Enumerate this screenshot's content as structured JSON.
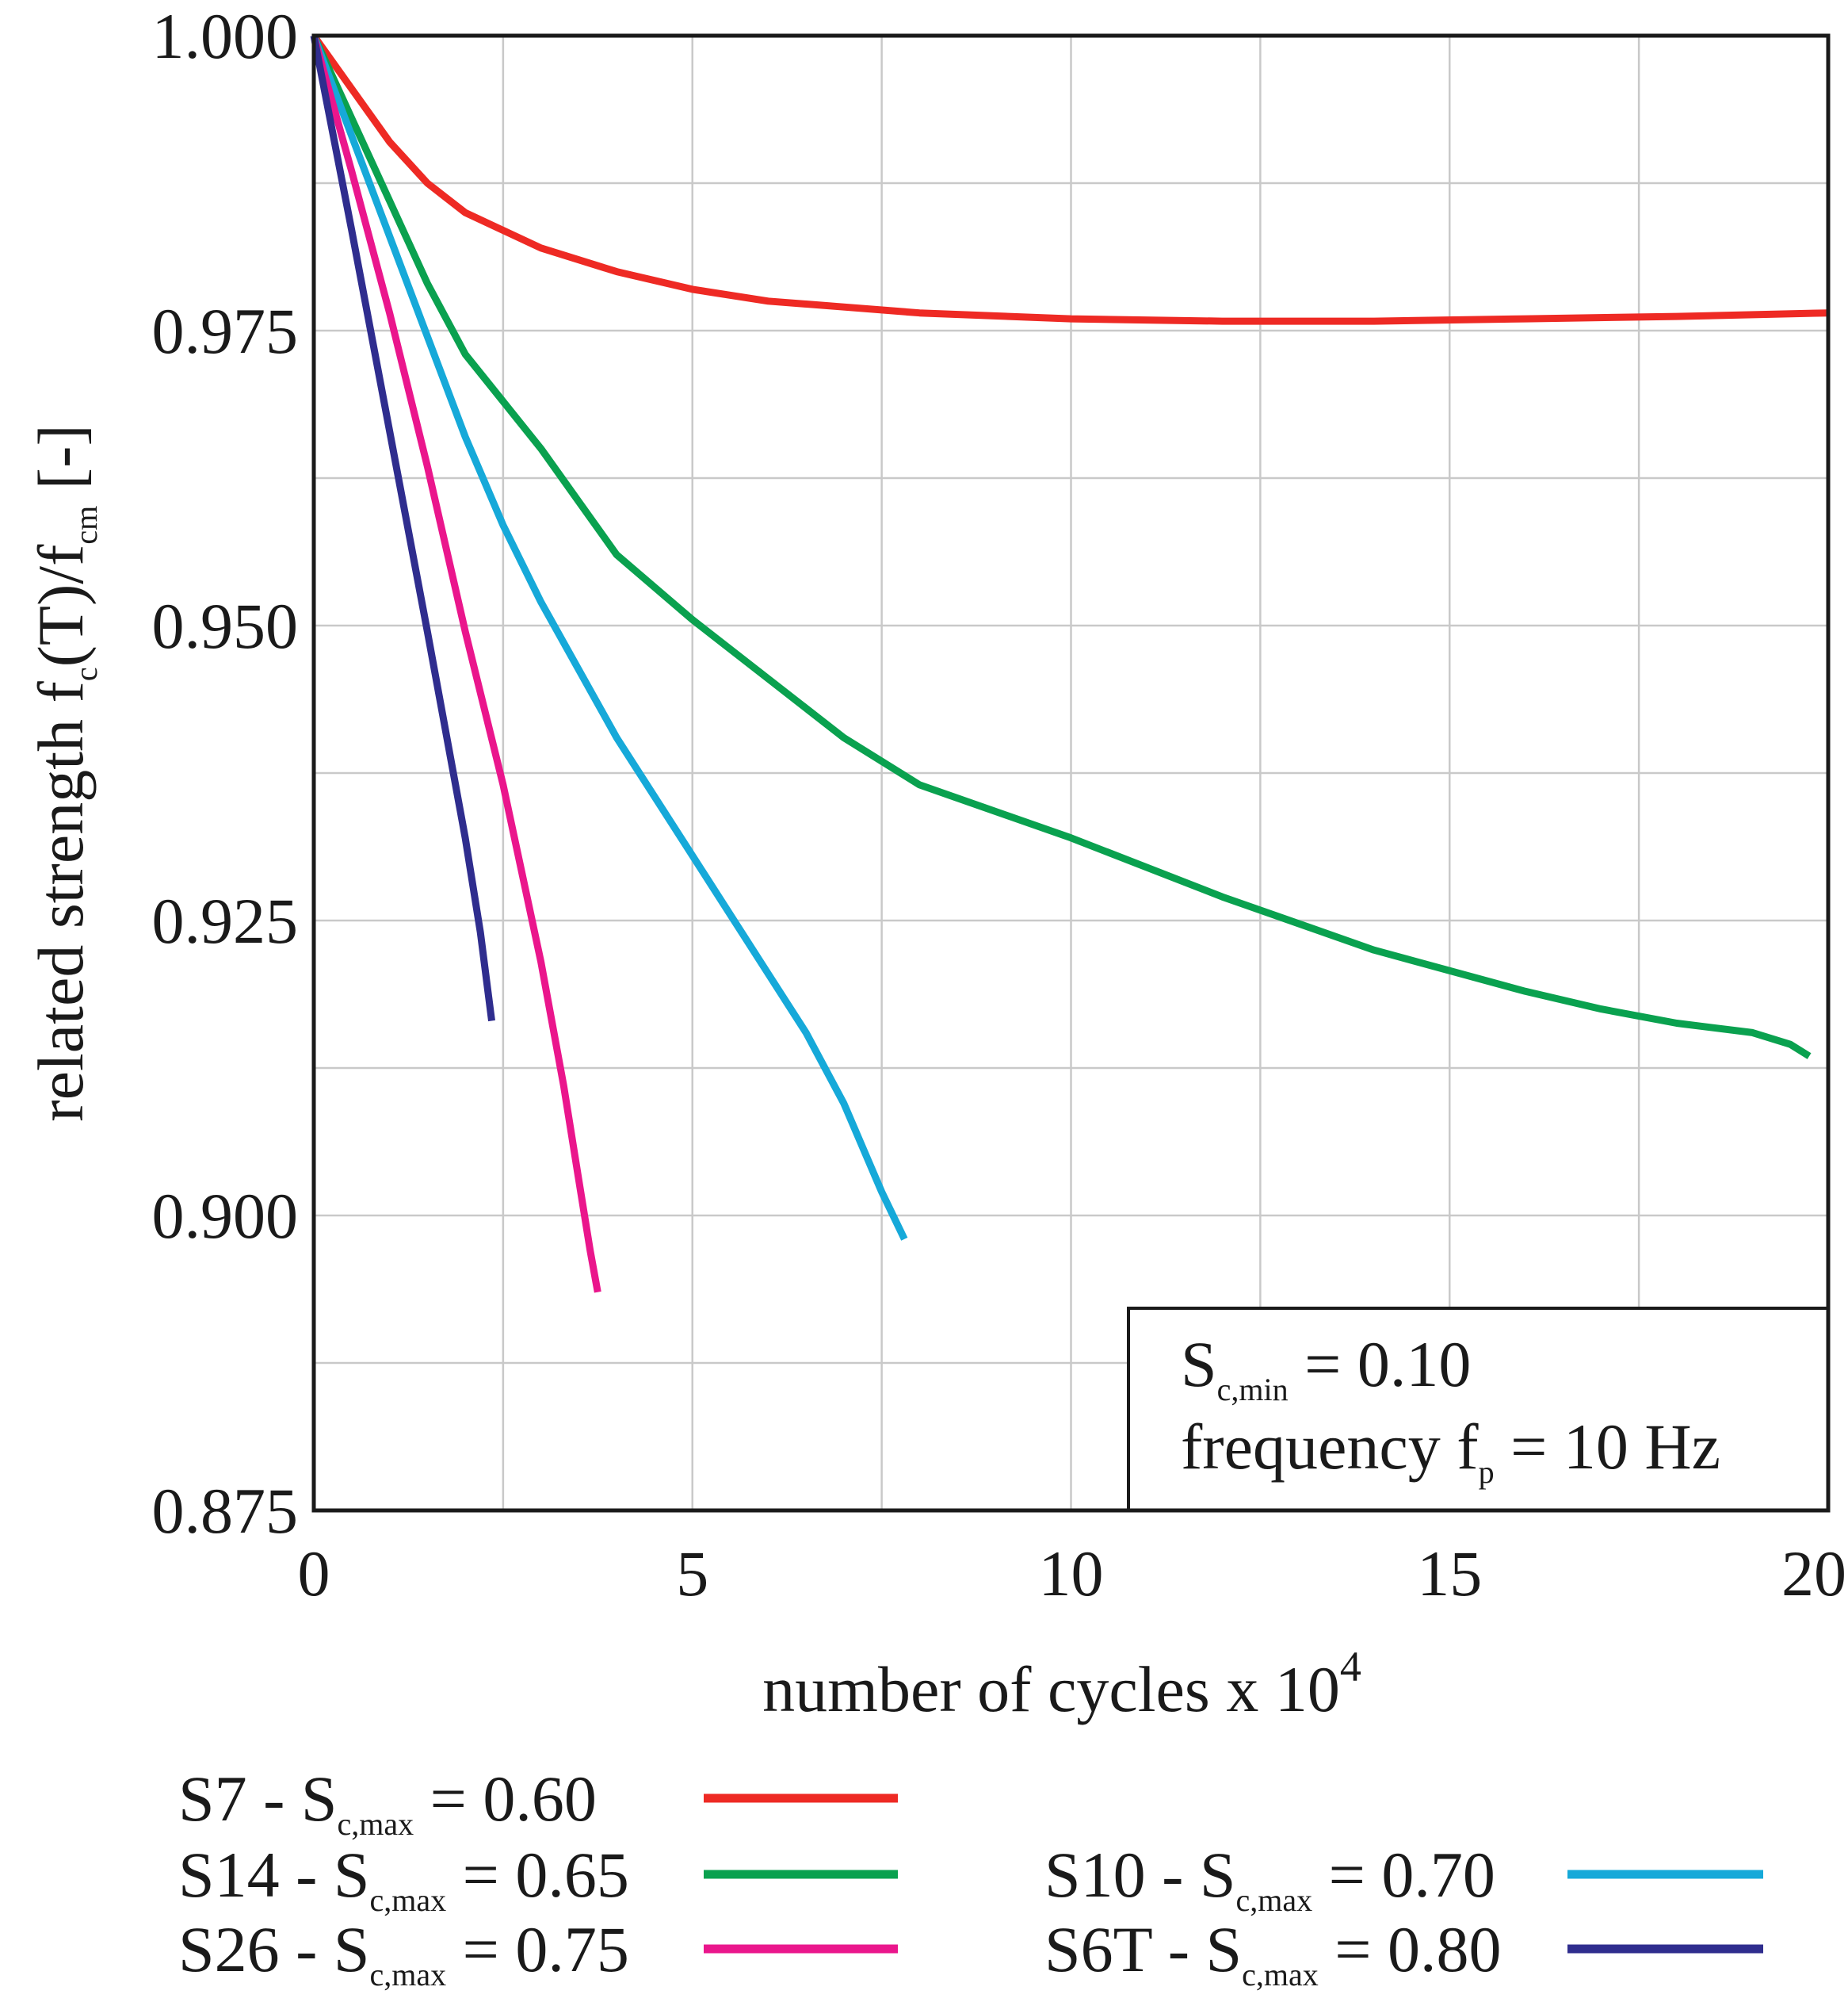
{
  "chart_data": {
    "type": "line",
    "xlabel_main": "number of cycles x 10",
    "xlabel_sup": "4",
    "ylabel_parts": [
      "related strength f",
      "c",
      "(T)/f",
      "cm",
      " [-]"
    ],
    "xlim": [
      0,
      20
    ],
    "ylim": [
      0.875,
      1.0
    ],
    "xticks": [
      0,
      5,
      10,
      15,
      20
    ],
    "xtick_labels": [
      "0",
      "5",
      "10",
      "15",
      "20"
    ],
    "yticks": [
      0.875,
      0.9,
      0.925,
      0.95,
      0.975,
      1.0
    ],
    "ytick_labels": [
      "0.875",
      "0.900",
      "0.925",
      "0.950",
      "0.975",
      "1.000"
    ],
    "grid": true,
    "annotation": {
      "line1_main": "S",
      "line1_sub": "c,min",
      "line1_rest": " = 0.10",
      "line2_main": "frequency f",
      "line2_sub": "p",
      "line2_rest": " = 10 Hz"
    },
    "series": [
      {
        "name": "S7",
        "label_prefix": "S7 - S",
        "label_sub": "c,max",
        "label_suffix": " = 0.60",
        "color": "#ee2a24",
        "x": [
          0,
          0.5,
          1,
          1.5,
          2,
          3,
          4,
          5,
          6,
          7,
          8,
          10,
          12,
          14,
          16,
          18,
          20
        ],
        "y": [
          1.0,
          0.9955,
          0.991,
          0.9875,
          0.985,
          0.982,
          0.98,
          0.9785,
          0.9775,
          0.977,
          0.9765,
          0.976,
          0.9758,
          0.9758,
          0.976,
          0.9762,
          0.9765
        ]
      },
      {
        "name": "S14",
        "label_prefix": "S14 - S",
        "label_sub": "c,max",
        "label_suffix": " = 0.65",
        "color": "#0aa14f",
        "x": [
          0,
          0.5,
          1,
          1.5,
          2,
          3,
          4,
          5,
          6,
          7,
          8,
          10,
          12,
          14,
          16,
          17,
          18,
          19,
          19.5,
          19.75
        ],
        "y": [
          1.0,
          0.993,
          0.986,
          0.979,
          0.973,
          0.965,
          0.956,
          0.9505,
          0.9455,
          0.9405,
          0.9365,
          0.932,
          0.927,
          0.9225,
          0.919,
          0.9175,
          0.9163,
          0.9155,
          0.9145,
          0.9135
        ]
      },
      {
        "name": "S10",
        "label_prefix": "S10 - S",
        "label_sub": "c,max",
        "label_suffix": " = 0.70",
        "color": "#16a9d9",
        "x": [
          0,
          0.5,
          1,
          1.5,
          2,
          2.5,
          3,
          4,
          5,
          6,
          6.5,
          7,
          7.3,
          7.5,
          7.8
        ],
        "y": [
          1.0,
          0.9915,
          0.983,
          0.9745,
          0.966,
          0.9585,
          0.952,
          0.9405,
          0.9305,
          0.9205,
          0.9155,
          0.9095,
          0.905,
          0.902,
          0.898
        ]
      },
      {
        "name": "S26",
        "label_prefix": "S26 - S",
        "label_sub": "c,max",
        "label_suffix": " = 0.75",
        "color": "#ea168c",
        "x": [
          0,
          0.5,
          1,
          1.5,
          2,
          2.5,
          3,
          3.3,
          3.5,
          3.65,
          3.75
        ],
        "y": [
          1.0,
          0.9885,
          0.9765,
          0.9635,
          0.9495,
          0.9365,
          0.9215,
          0.911,
          0.903,
          0.897,
          0.8935
        ]
      },
      {
        "name": "S6T",
        "label_prefix": "S6T - S",
        "label_sub": "c,max",
        "label_suffix": " = 0.80",
        "color": "#2f2d8e",
        "x": [
          0,
          0.5,
          1,
          1.5,
          2,
          2.2,
          2.35
        ],
        "y": [
          1.0,
          0.9835,
          0.9665,
          0.9495,
          0.932,
          0.924,
          0.9165
        ]
      }
    ]
  }
}
